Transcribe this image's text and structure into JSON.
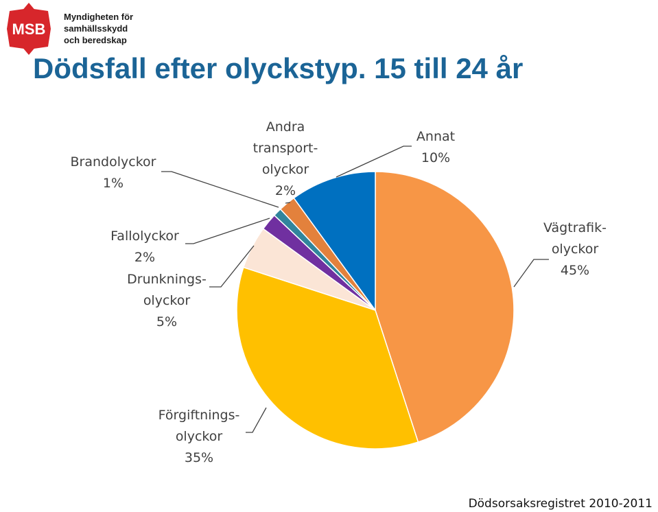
{
  "logo": {
    "acronym": "MSB",
    "lines": [
      "Myndigheten för",
      "samhällsskydd",
      "och beredskap"
    ],
    "color": "#d7262b"
  },
  "title": "Dödsfall efter olyckstyp. 15 till 24 år",
  "source": "Dödsorsaksregistret 2010-2011",
  "chart_data": {
    "type": "pie",
    "title": "Dödsfall efter olyckstyp. 15 till 24 år",
    "start": "top, clockwise",
    "slices": [
      {
        "name": "Vägtrafikolyckor",
        "label_lines": [
          "Vägtrafik-",
          "olyckor",
          "45%"
        ],
        "value": 45,
        "color": "#f79646"
      },
      {
        "name": "Förgiftningsolyckor",
        "label_lines": [
          "Förgiftnings-",
          "olyckor",
          "35%"
        ],
        "value": 35,
        "color": "#ffc000"
      },
      {
        "name": "Drunkningsolyckor",
        "label_lines": [
          "Drunknings-",
          "olyckor",
          "5%"
        ],
        "value": 5,
        "color": "#fbe5d6"
      },
      {
        "name": "Fallolyckor",
        "label_lines": [
          "Fallolyckor",
          "2%"
        ],
        "value": 2,
        "color": "#7030a0"
      },
      {
        "name": "Brandolyckor",
        "label_lines": [
          "Brandolyckor",
          "1%"
        ],
        "value": 1,
        "color": "#31859c"
      },
      {
        "name": "Andra transportolyckor",
        "label_lines": [
          "Andra",
          "transport-",
          "olyckor",
          "2%"
        ],
        "value": 2,
        "color": "#e3813c"
      },
      {
        "name": "Annat",
        "label_lines": [
          "Annat",
          "10%"
        ],
        "value": 10,
        "color": "#0070c0"
      }
    ]
  }
}
